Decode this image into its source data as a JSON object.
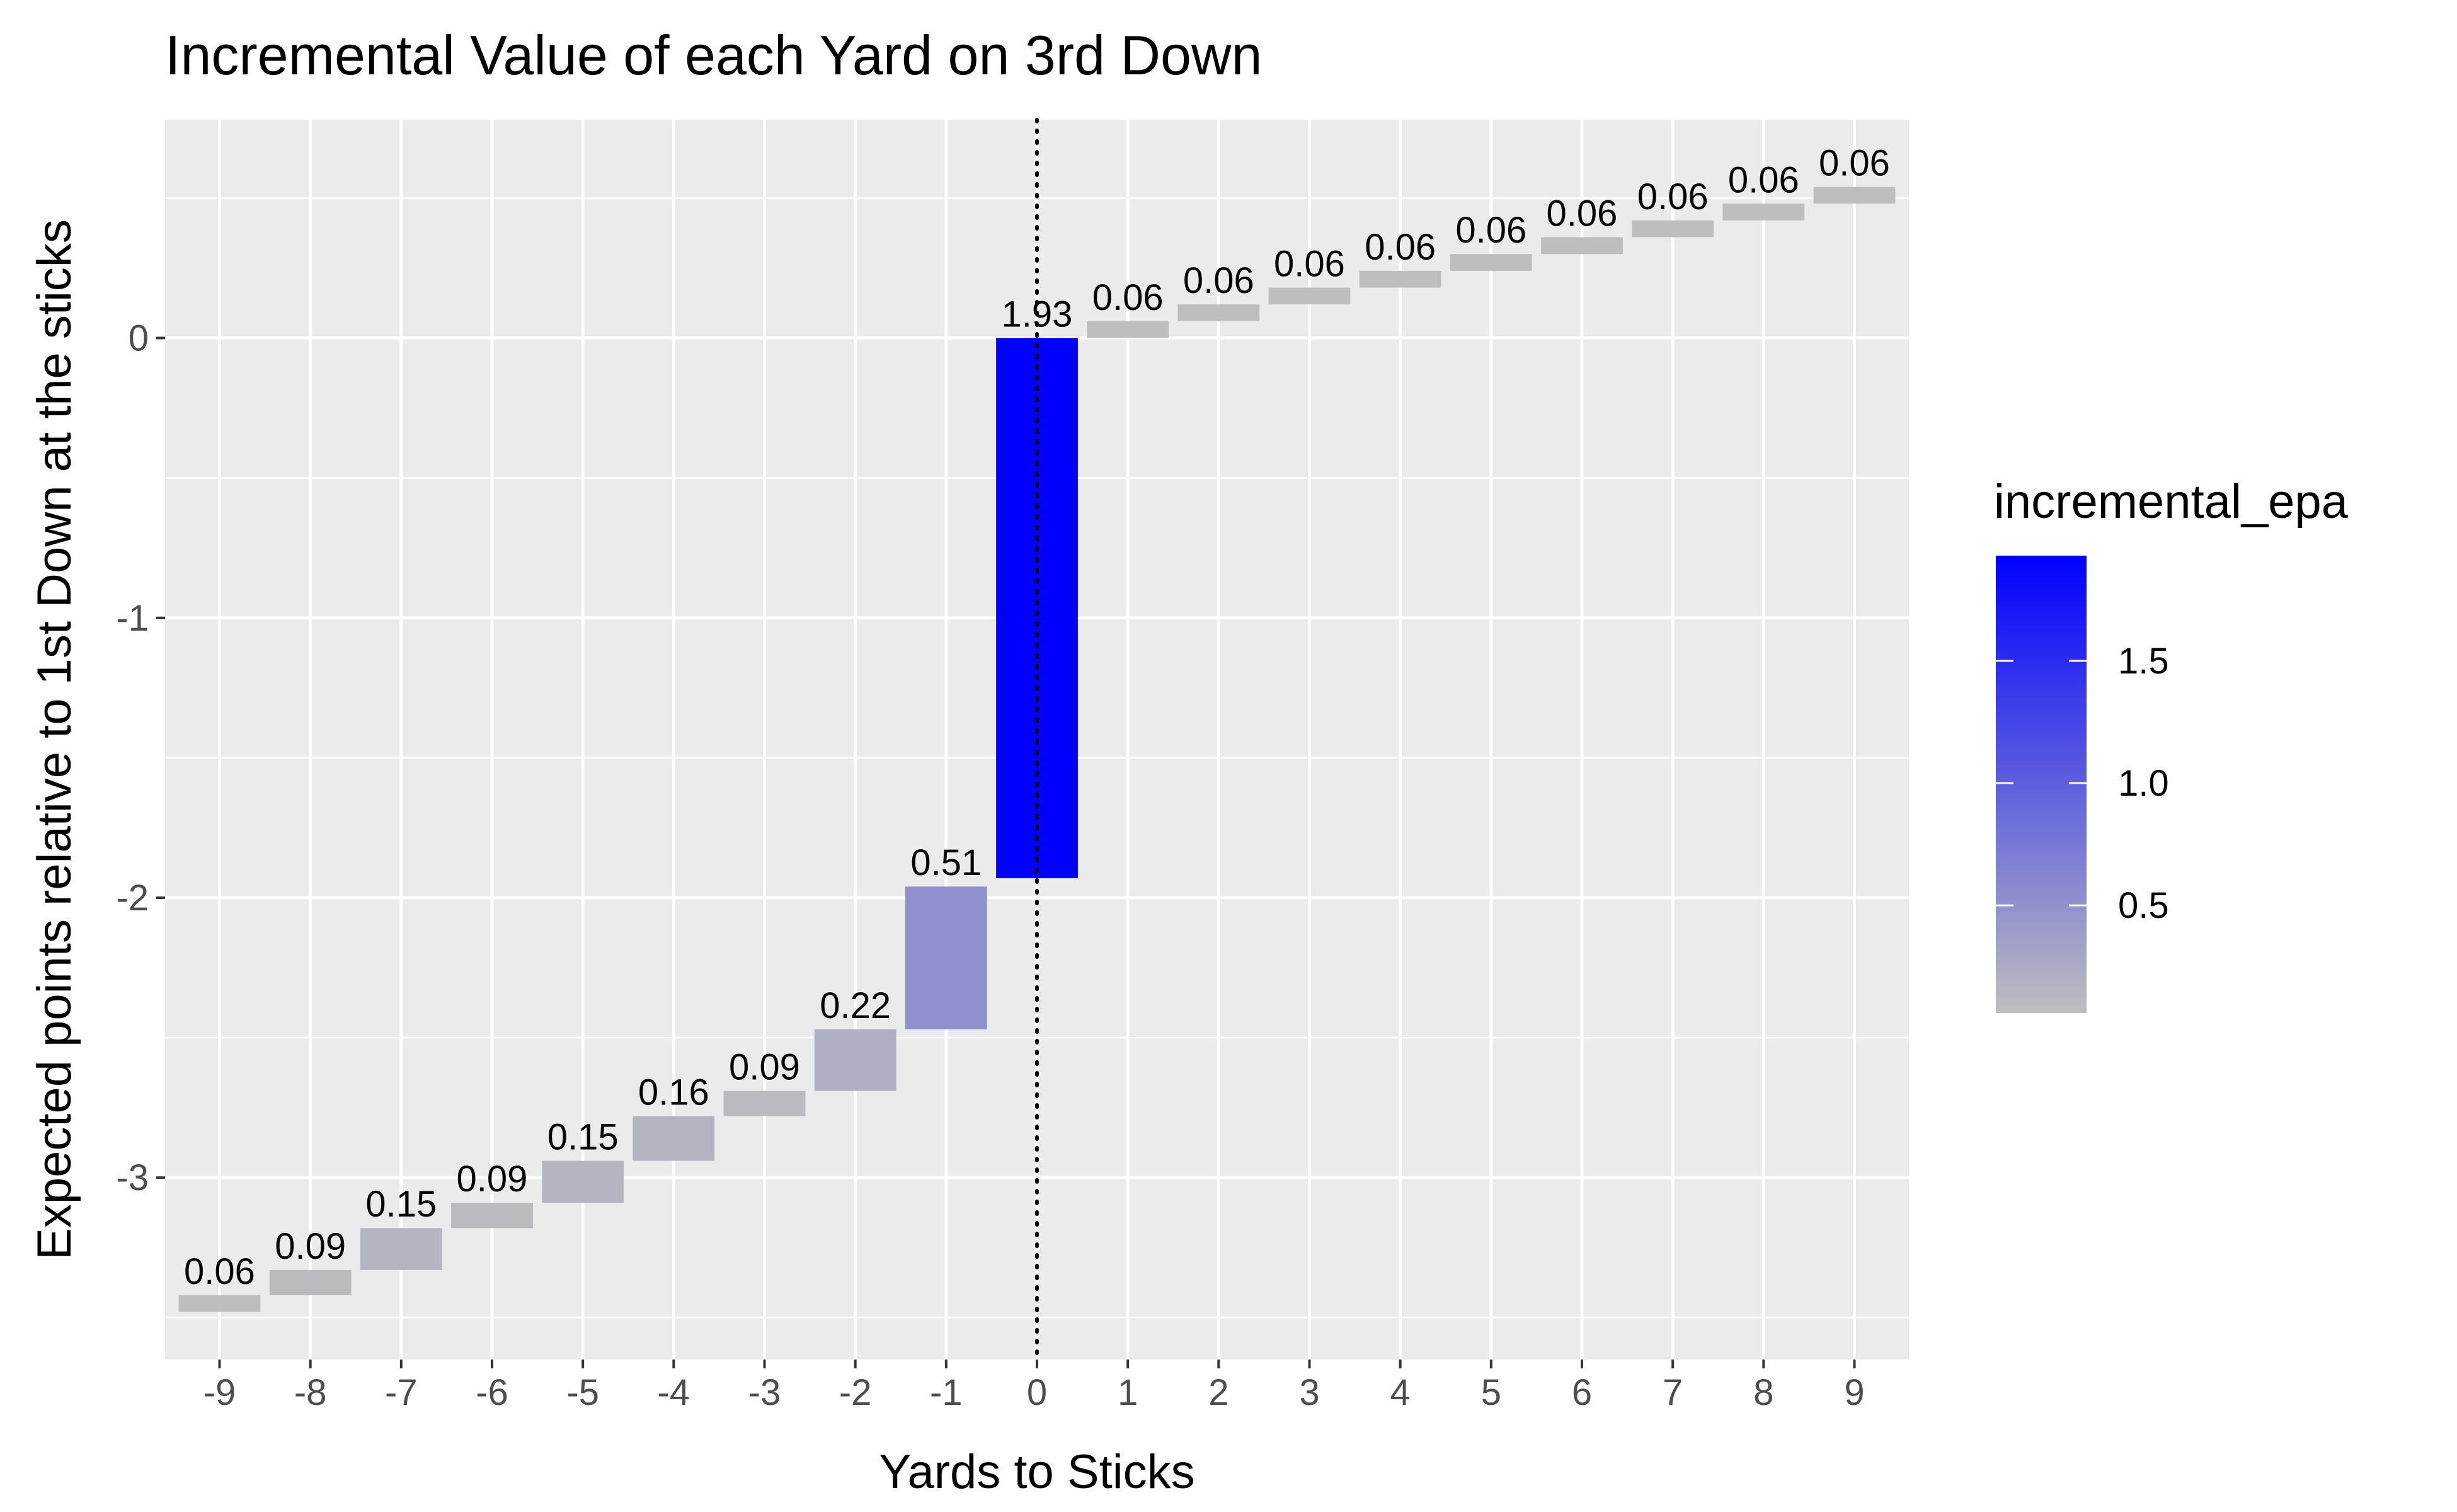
{
  "chart_data": {
    "type": "bar",
    "subtype": "waterfall",
    "title": "Incremental Value of each Yard on 3rd Down",
    "xlabel": "Yards to Sticks",
    "ylabel": "Expected points relative to 1st Down at the sticks",
    "categories": [
      -9,
      -8,
      -7,
      -6,
      -5,
      -4,
      -3,
      -2,
      -1,
      0,
      1,
      2,
      3,
      4,
      5,
      6,
      7,
      8,
      9
    ],
    "x_ticks": [
      "-9",
      "-8",
      "-7",
      "-6",
      "-5",
      "-4",
      "-3",
      "-2",
      "-1",
      "0",
      "1",
      "2",
      "3",
      "4",
      "5",
      "6",
      "7",
      "8",
      "9"
    ],
    "incremental_epa": [
      0.06,
      0.09,
      0.15,
      0.09,
      0.15,
      0.16,
      0.09,
      0.22,
      0.51,
      1.93,
      0.06,
      0.06,
      0.06,
      0.06,
      0.06,
      0.06,
      0.06,
      0.06,
      0.06
    ],
    "labels": [
      "0.06",
      "0.09",
      "0.15",
      "0.09",
      "0.15",
      "0.16",
      "0.09",
      "0.22",
      "0.51",
      "1.93",
      "0.06",
      "0.06",
      "0.06",
      "0.06",
      "0.06",
      "0.06",
      "0.06",
      "0.06",
      "0.06"
    ],
    "bar_start": [
      -3.48,
      -3.42,
      -3.33,
      -3.18,
      -3.09,
      -2.94,
      -2.78,
      -2.69,
      -2.47,
      -1.93,
      0.0,
      0.06,
      0.12,
      0.18,
      0.24,
      0.3,
      0.36,
      0.42,
      0.48
    ],
    "bar_end": [
      -3.42,
      -3.33,
      -3.18,
      -3.09,
      -2.94,
      -2.78,
      -2.69,
      -2.47,
      -1.96,
      0.0,
      0.06,
      0.12,
      0.18,
      0.24,
      0.3,
      0.36,
      0.42,
      0.48,
      0.54
    ],
    "y_ticks": [
      0,
      -1,
      -2,
      -3
    ],
    "y_tick_labels": [
      "0",
      "-1",
      "-2",
      "-3"
    ],
    "ylim": [
      -3.65,
      0.78
    ],
    "xlim": [
      -9.6,
      9.6
    ],
    "reference_line": {
      "x": 0,
      "style": "dotted"
    },
    "grid": true,
    "legend": {
      "title": "incremental_epa",
      "position": "right",
      "type": "colorbar",
      "range": [
        0.06,
        1.93
      ],
      "ticks": [
        0.5,
        1.0,
        1.5
      ],
      "tick_labels": [
        "0.5",
        "1.0",
        "1.5"
      ],
      "low_color": "#bebebe",
      "high_color": "#0000ff"
    },
    "colors": {
      "panel_background": "#ebebeb",
      "grid_major": "#ffffff",
      "low": "#bebebe",
      "high": "#0000ff"
    }
  }
}
